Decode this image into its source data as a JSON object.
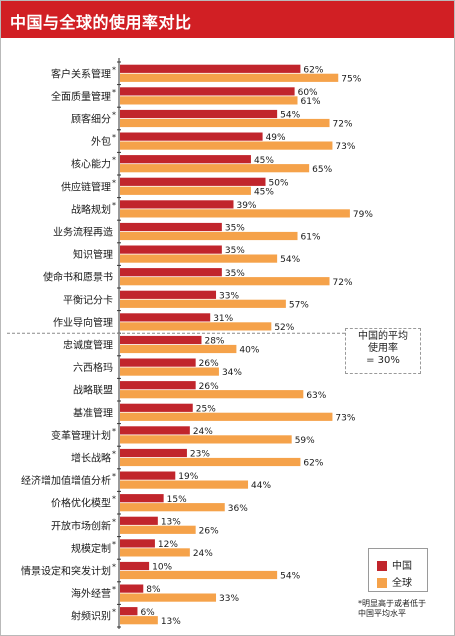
{
  "header": {
    "title": "中国与全球的使用率对比"
  },
  "colors": {
    "title_background": "#d11f24",
    "china": "#c1252c",
    "global": "#f5a24a"
  },
  "average_box": {
    "line1": "中国的平均",
    "line2": "使用率",
    "line3": "= 30%"
  },
  "legend": {
    "china_label": "中国",
    "global_label": "全球"
  },
  "footnote": {
    "line1": "*明显高于或者低于",
    "line2": "中国平均水平"
  },
  "chart_data": {
    "type": "bar",
    "orientation": "horizontal",
    "title": "中国与全球的使用率对比",
    "xlim": [
      0,
      100
    ],
    "grid": false,
    "legend_position": "bottom-right",
    "categories": [
      {
        "label": "客户关系管理",
        "star": true
      },
      {
        "label": "全面质量管理",
        "star": true
      },
      {
        "label": "顾客细分",
        "star": true
      },
      {
        "label": "外包",
        "star": true
      },
      {
        "label": "核心能力",
        "star": true
      },
      {
        "label": "供应链管理",
        "star": true
      },
      {
        "label": "战略规划",
        "star": true
      },
      {
        "label": "业务流程再造",
        "star": false
      },
      {
        "label": "知识管理",
        "star": false
      },
      {
        "label": "使命书和愿景书",
        "star": false
      },
      {
        "label": "平衡记分卡",
        "star": false
      },
      {
        "label": "作业导向管理",
        "star": false
      },
      {
        "label": "忠诚度管理",
        "star": false
      },
      {
        "label": "六西格玛",
        "star": false
      },
      {
        "label": "战略联盟",
        "star": false
      },
      {
        "label": "基准管理",
        "star": false
      },
      {
        "label": "变革管理计划",
        "star": true
      },
      {
        "label": "增长战略",
        "star": true
      },
      {
        "label": "经济增加值增值分析",
        "star": true
      },
      {
        "label": "价格优化模型",
        "star": true
      },
      {
        "label": "开放市场创新",
        "star": true
      },
      {
        "label": "规模定制",
        "star": true
      },
      {
        "label": "情景设定和突发计划",
        "star": true
      },
      {
        "label": "海外经营",
        "star": true
      },
      {
        "label": "射频识别",
        "star": true
      }
    ],
    "series": [
      {
        "name": "中国",
        "values": [
          62,
          60,
          54,
          49,
          45,
          50,
          39,
          35,
          35,
          35,
          33,
          31,
          28,
          26,
          26,
          25,
          24,
          23,
          19,
          15,
          13,
          12,
          10,
          8,
          6
        ]
      },
      {
        "name": "全球",
        "values": [
          75,
          61,
          72,
          73,
          65,
          45,
          79,
          61,
          54,
          72,
          57,
          52,
          40,
          34,
          63,
          73,
          59,
          62,
          44,
          36,
          26,
          24,
          54,
          33,
          13
        ]
      }
    ],
    "value_suffix": "%",
    "divider_after_index": 11
  }
}
